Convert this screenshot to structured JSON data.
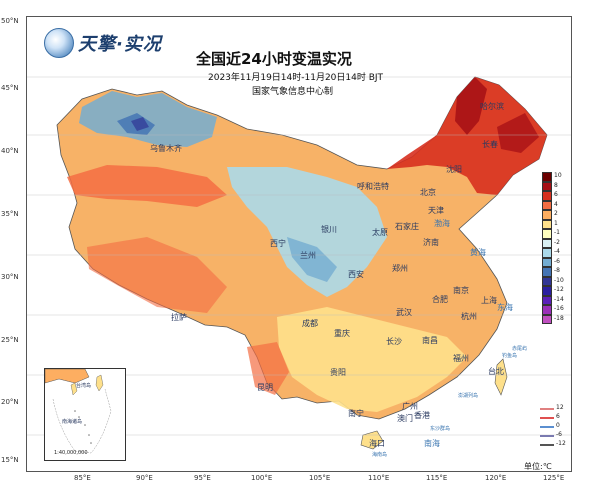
{
  "logo": {
    "text": "天擎·实况",
    "icon": "globe-icon"
  },
  "title": "全国近24小时变温实况",
  "subtitle": "2023年11月19日14时-11月20日14时  BJT",
  "agency": "国家气象信息中心制",
  "axes": {
    "lat_labels": [
      "50°N",
      "45°N",
      "40°N",
      "35°N",
      "30°N",
      "25°N",
      "20°N",
      "15°N"
    ],
    "lon_labels": [
      "85°E",
      "90°E",
      "95°E",
      "100°E",
      "105°E",
      "110°E",
      "115°E",
      "120°E",
      "125°E"
    ]
  },
  "cities": [
    {
      "name": "哈尔滨"
    },
    {
      "name": "长春"
    },
    {
      "name": "沈阳"
    },
    {
      "name": "呼和浩特"
    },
    {
      "name": "北京"
    },
    {
      "name": "天津"
    },
    {
      "name": "石家庄"
    },
    {
      "name": "太原"
    },
    {
      "name": "银川"
    },
    {
      "name": "济南"
    },
    {
      "name": "西宁"
    },
    {
      "name": "兰州"
    },
    {
      "name": "郑州"
    },
    {
      "name": "西安"
    },
    {
      "name": "南京"
    },
    {
      "name": "合肥"
    },
    {
      "name": "上海"
    },
    {
      "name": "武汉"
    },
    {
      "name": "杭州"
    },
    {
      "name": "成都"
    },
    {
      "name": "重庆"
    },
    {
      "name": "长沙"
    },
    {
      "name": "南昌"
    },
    {
      "name": "拉萨"
    },
    {
      "name": "贵阳"
    },
    {
      "name": "福州"
    },
    {
      "name": "台北"
    },
    {
      "name": "昆明"
    },
    {
      "name": "南宁"
    },
    {
      "name": "广州"
    },
    {
      "name": "澳门"
    },
    {
      "name": "香港"
    },
    {
      "name": "海口"
    },
    {
      "name": "乌鲁木齐"
    }
  ],
  "seas": [
    {
      "name": "渤海"
    },
    {
      "name": "黄海"
    },
    {
      "name": "东海"
    },
    {
      "name": "南海"
    },
    {
      "name": "赤尾屿"
    },
    {
      "name": "钓鱼岛"
    },
    {
      "name": "澎湖列岛"
    },
    {
      "name": "东沙群岛"
    },
    {
      "name": "海南岛"
    }
  ],
  "legend": {
    "items": [
      {
        "label": "10",
        "color": "#6b0000"
      },
      {
        "label": "8",
        "color": "#a50f15"
      },
      {
        "label": "6",
        "color": "#d7301f"
      },
      {
        "label": "4",
        "color": "#f46d43"
      },
      {
        "label": "2",
        "color": "#fdae61"
      },
      {
        "label": "1",
        "color": "#fee08b"
      },
      {
        "label": "-1",
        "color": "#ffffbf"
      },
      {
        "label": "-2",
        "color": "#d9f0f3"
      },
      {
        "label": "-4",
        "color": "#abd9e9"
      },
      {
        "label": "-6",
        "color": "#74add1"
      },
      {
        "label": "-8",
        "color": "#4575b4"
      },
      {
        "label": "-10",
        "color": "#313695"
      },
      {
        "label": "-12",
        "color": "#2a1fa0"
      },
      {
        "label": "-14",
        "color": "#5a1fb8"
      },
      {
        "label": "-16",
        "color": "#9a2fb8"
      },
      {
        "label": "-18",
        "color": "#c04fc0"
      }
    ],
    "line_items": [
      {
        "label": "12",
        "color": "#e08080"
      },
      {
        "label": "6",
        "color": "#e05050"
      },
      {
        "label": "0",
        "color": "#5b8fd0"
      },
      {
        "label": "-6",
        "color": "#7a7ab0"
      },
      {
        "label": "-12",
        "color": "#555555"
      }
    ],
    "unit": "单位:℃"
  },
  "inset": {
    "scale": "1:40,000,000",
    "labels": [
      "台湾岛",
      "南海诸岛"
    ]
  }
}
